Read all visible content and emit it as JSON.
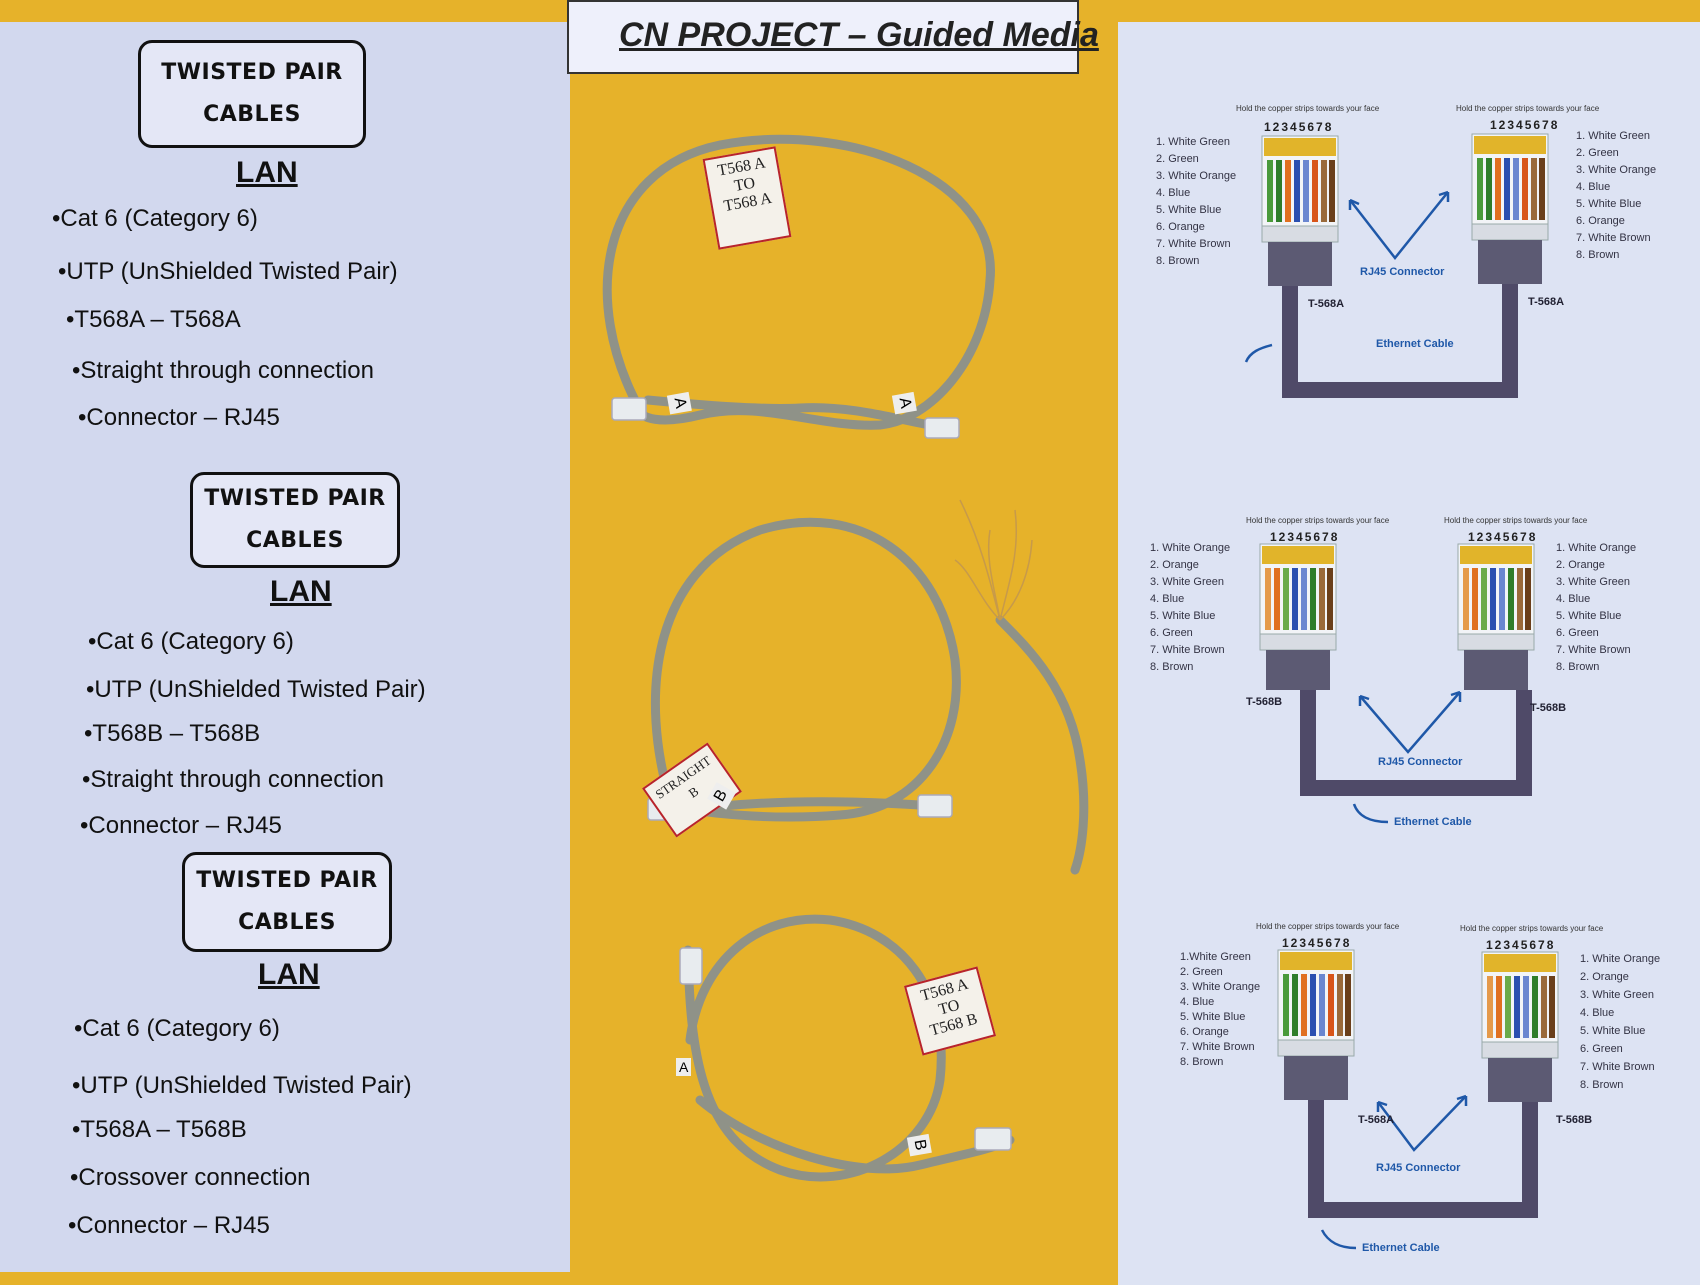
{
  "title": "CN PROJECT – Guided Media",
  "sections": [
    {
      "box_line1": "TWISTED PAIR",
      "box_line2": "CABLES",
      "lan": "LAN",
      "bullets": [
        "Cat 6 (Category 6)",
        "UTP (UnShielded Twisted Pair)",
        "T568A – T568A",
        "Straight through connection",
        "Connector – RJ45"
      ]
    },
    {
      "box_line1": "TWISTED PAIR",
      "box_line2": "CABLES",
      "lan": "LAN",
      "bullets": [
        "Cat 6 (Category 6)",
        "UTP (UnShielded Twisted Pair)",
        "T568B – T568B",
        "Straight through connection",
        "Connector – RJ45"
      ]
    },
    {
      "box_line1": "TWISTED PAIR",
      "box_line2": "CABLES",
      "lan": "LAN",
      "bullets": [
        "Cat 6 (Category 6)",
        "UTP (UnShielded Twisted Pair)",
        "T568A – T568B",
        "Crossover connection",
        "Connector – RJ45"
      ]
    }
  ],
  "cable_tags": [
    {
      "line1": "T568 A",
      "line2": "TO",
      "line3": "T568 A"
    },
    {
      "line1": "STRAIGHT",
      "line2": "B",
      "line3": ""
    },
    {
      "line1": "T568 A",
      "line2": "TO",
      "line3": "T568 B"
    }
  ],
  "cable_end_labels": [
    "A",
    "A",
    "B",
    "A",
    "B"
  ],
  "diagrams": [
    {
      "hint": "Hold the copper strips towards your face",
      "pins": "12345678",
      "left_wires": [
        "1. White Green",
        "2. Green",
        "3. White Orange",
        "4. Blue",
        "5. White Blue",
        "6. Orange",
        "7. White Brown",
        "8. Brown"
      ],
      "right_wires": [
        "1. White Green",
        "2. Green",
        "3. White Orange",
        "4. Blue",
        "5. White Blue",
        "6. Orange",
        "7. White Brown",
        "8. Brown"
      ],
      "left_std": "T-568A",
      "right_std": "T-568A",
      "connector": "RJ45 Connector",
      "cable": "Ethernet Cable"
    },
    {
      "hint": "Hold the copper strips towards your face",
      "pins": "12345678",
      "left_wires": [
        "1. White Orange",
        "2. Orange",
        "3. White Green",
        "4. Blue",
        "5. White Blue",
        "6. Green",
        "7. White Brown",
        "8. Brown"
      ],
      "right_wires": [
        "1. White Orange",
        "2. Orange",
        "3. White Green",
        "4. Blue",
        "5. White Blue",
        "6. Green",
        "7. White Brown",
        "8. Brown"
      ],
      "left_std": "T-568B",
      "right_std": "T-568B",
      "connector": "RJ45 Connector",
      "cable": "Ethernet Cable"
    },
    {
      "hint": "Hold the copper strips towards your face",
      "pins": "12345678",
      "left_wires": [
        "1.White Green",
        "2. Green",
        "3. White Orange",
        "4. Blue",
        "5. White Blue",
        "6. Orange",
        "7. White Brown",
        "8. Brown"
      ],
      "right_wires": [
        "1. White Orange",
        "2. Orange",
        "3. White Green",
        "4. Blue",
        "5. White Blue",
        "6. Green",
        "7. White Brown",
        "8. Brown"
      ],
      "left_std": "T-568A",
      "right_std": "T-568B",
      "connector": "RJ45 Connector",
      "cable": "Ethernet Cable"
    }
  ]
}
